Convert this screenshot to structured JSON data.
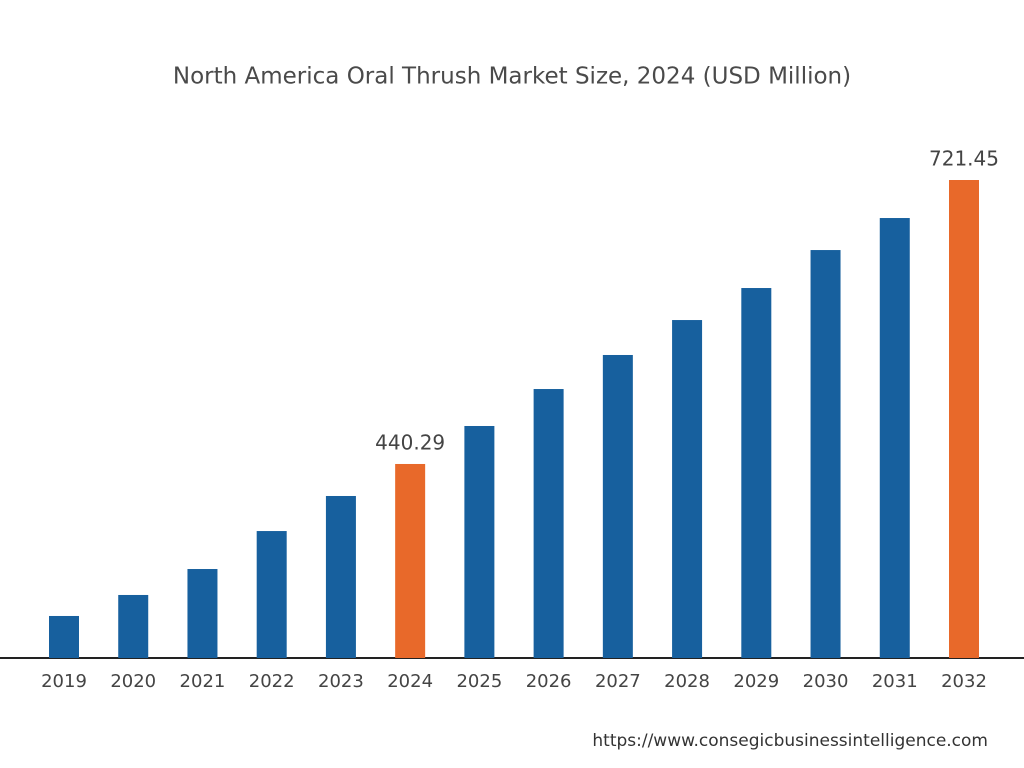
{
  "chart_data": {
    "type": "bar",
    "title": "North America Oral Thrush Market Size, 2024 (USD Million)",
    "categories": [
      "2019",
      "2020",
      "2021",
      "2022",
      "2023",
      "2024",
      "2025",
      "2026",
      "2027",
      "2028",
      "2029",
      "2030",
      "2031",
      "2032"
    ],
    "values": [
      289.8,
      310.6,
      336.3,
      373.9,
      408.6,
      440.29,
      477.9,
      514.5,
      548.2,
      582.8,
      614.5,
      652.1,
      683.8,
      721.45
    ],
    "value_labels": [
      null,
      null,
      null,
      null,
      null,
      "440.29",
      null,
      null,
      null,
      null,
      null,
      null,
      null,
      "721.45"
    ],
    "colors": [
      "#17609e",
      "#17609e",
      "#17609e",
      "#17609e",
      "#17609e",
      "#e8692a",
      "#17609e",
      "#17609e",
      "#17609e",
      "#17609e",
      "#17609e",
      "#17609e",
      "#17609e",
      "#e8692a"
    ],
    "ylim": [
      248.2,
      721.45
    ],
    "source": "https://www.consegicbusinessintelligence.com"
  }
}
